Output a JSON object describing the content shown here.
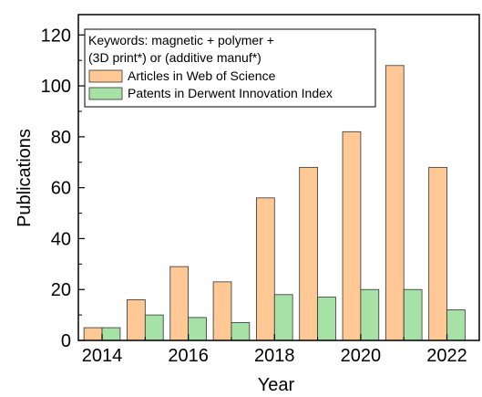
{
  "chart_data": {
    "type": "bar",
    "x": [
      2014,
      2015,
      2016,
      2017,
      2018,
      2019,
      2020,
      2021,
      2022
    ],
    "series": [
      {
        "name": "Articles in Web of Science",
        "values": [
          5,
          16,
          29,
          23,
          56,
          68,
          82,
          108,
          68
        ],
        "color": "#FFC895"
      },
      {
        "name": "Patents in Derwent Innovation Index",
        "values": [
          5,
          10,
          9,
          7,
          18,
          17,
          20,
          20,
          12
        ],
        "color": "#A6E2A6"
      }
    ],
    "xlabel": "Year",
    "ylabel": "Publications",
    "xticks": [
      2014,
      2016,
      2018,
      2020,
      2022
    ],
    "yticks": [
      0,
      20,
      40,
      60,
      80,
      100,
      120
    ],
    "ylim": [
      0,
      128
    ],
    "grid": false,
    "legend": {
      "position": "top-left",
      "title_lines": [
        "Keywords: magnetic + polymer +",
        "(3D print*) or (additive manuf*)"
      ]
    }
  }
}
